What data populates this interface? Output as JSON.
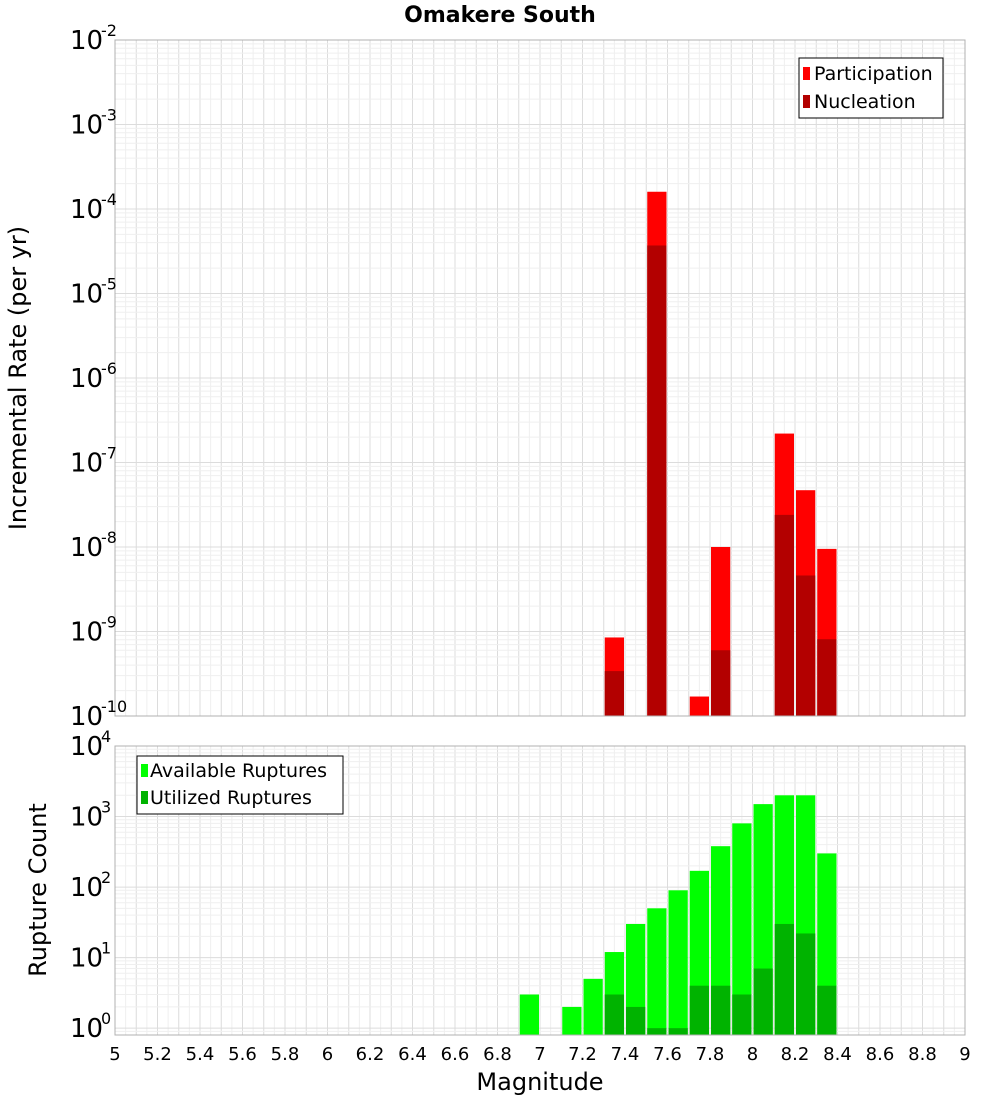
{
  "colors": {
    "participation": "#ff0000",
    "nucleation": "#b30000",
    "available": "#00ff00",
    "utilized": "#00b300"
  },
  "chart_data": [
    {
      "type": "bar",
      "title": "Omakere South",
      "xlabel": "",
      "ylabel": "Incremental Rate (per yr)",
      "scale": "log",
      "ylim": [
        1e-10,
        0.01
      ],
      "xlim": [
        5,
        9
      ],
      "bin_width": 0.1,
      "legend_position": "top-right",
      "series": [
        {
          "name": "Participation",
          "color": "#ff0000",
          "x": [
            7.35,
            7.55,
            7.75,
            7.85,
            8.15,
            8.25,
            8.35
          ],
          "values": [
            8.5e-10,
            0.00016,
            1.7e-10,
            1e-08,
            2.2e-07,
            4.7e-08,
            9.5e-09
          ]
        },
        {
          "name": "Nucleation",
          "color": "#b30000",
          "x": [
            7.35,
            7.55,
            7.85,
            8.15,
            8.25,
            8.35
          ],
          "values": [
            3.4e-10,
            3.7e-05,
            6e-10,
            2.4e-08,
            4.6e-09,
            8.1e-10
          ]
        }
      ]
    },
    {
      "type": "bar",
      "title": "",
      "xlabel": "Magnitude",
      "ylabel": "Rupture Count",
      "scale": "log",
      "ylim": [
        0.8,
        10000.0
      ],
      "xlim": [
        5,
        9
      ],
      "bin_width": 0.1,
      "xticks": [
        "5",
        "5.2",
        "5.4",
        "5.6",
        "5.8",
        "6",
        "6.2",
        "6.4",
        "6.6",
        "6.8",
        "7",
        "7.2",
        "7.4",
        "7.6",
        "7.8",
        "8",
        "8.2",
        "8.4",
        "8.6",
        "8.8",
        "9"
      ],
      "legend_position": "top-left",
      "series": [
        {
          "name": "Available Ruptures",
          "color": "#00ff00",
          "x": [
            6.95,
            7.15,
            7.25,
            7.35,
            7.45,
            7.55,
            7.65,
            7.75,
            7.85,
            7.95,
            8.05,
            8.15,
            8.25,
            8.35
          ],
          "values": [
            3,
            2,
            5,
            12,
            30,
            50,
            90,
            170,
            380,
            800,
            1500,
            2000,
            2000,
            300
          ]
        },
        {
          "name": "Utilized Ruptures",
          "color": "#00b300",
          "x": [
            7.35,
            7.45,
            7.55,
            7.65,
            7.75,
            7.85,
            7.95,
            8.05,
            8.15,
            8.25,
            8.35
          ],
          "values": [
            3,
            2,
            1,
            1,
            4,
            4,
            3,
            7,
            30,
            22,
            4
          ]
        }
      ]
    }
  ]
}
